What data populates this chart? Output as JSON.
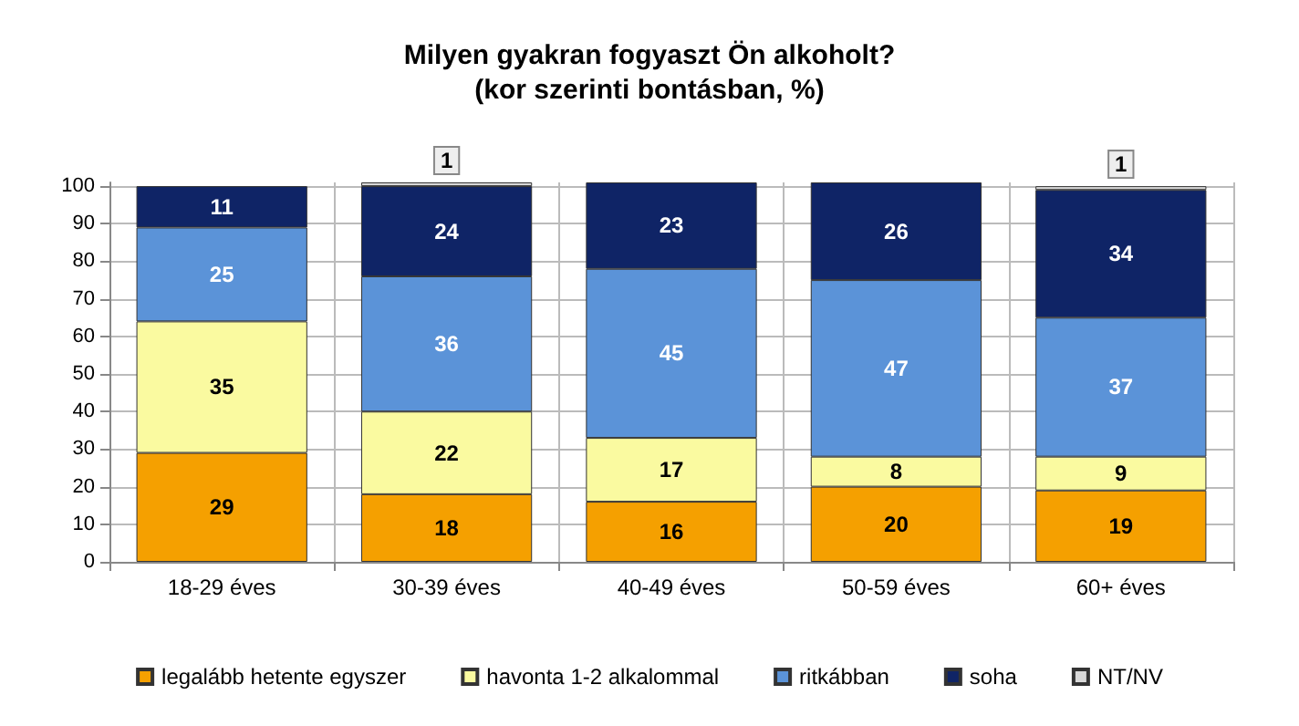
{
  "chart_data": {
    "type": "bar",
    "title": "Milyen gyakran fogyaszt Ön alkoholt?\n(kor szerinti bontásban, %)",
    "categories": [
      "18-29 éves",
      "30-39 éves",
      "40-49 éves",
      "50-59 éves",
      "60+ éves"
    ],
    "series": [
      {
        "name": "legalább hetente egyszer",
        "color": "#f5a000",
        "values": [
          29,
          18,
          16,
          20,
          19
        ]
      },
      {
        "name": "havonta 1-2 alkalommal",
        "color": "#fafaa0",
        "values": [
          35,
          22,
          17,
          8,
          9
        ]
      },
      {
        "name": "ritkábban",
        "color": "#5b93d8",
        "values": [
          25,
          36,
          45,
          47,
          37
        ]
      },
      {
        "name": "soha",
        "color": "#0f2466",
        "values": [
          11,
          24,
          23,
          26,
          34
        ]
      },
      {
        "name": "NT/NV",
        "color": "#d9d9d9",
        "values": [
          null,
          1,
          null,
          null,
          1
        ]
      }
    ],
    "stacked": true,
    "data_labels": true,
    "ylim": [
      0,
      101
    ],
    "yticks": [
      0,
      10,
      20,
      30,
      40,
      50,
      60,
      70,
      80,
      90,
      100
    ],
    "grid": true,
    "legend": "bottom"
  }
}
